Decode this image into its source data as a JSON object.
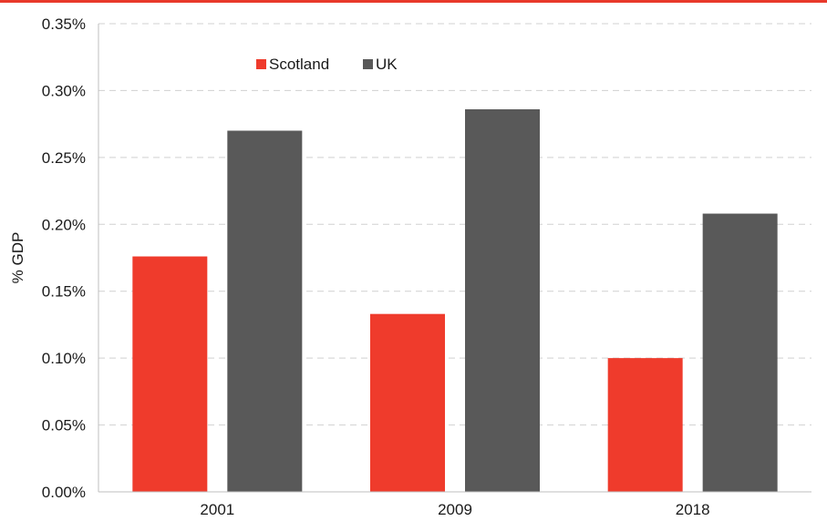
{
  "theme": {
    "accent": "#e8392b"
  },
  "chart_data": {
    "type": "bar",
    "title": "",
    "xlabel": "",
    "ylabel": "% GDP",
    "categories": [
      "2001",
      "2009",
      "2018"
    ],
    "series": [
      {
        "name": "Scotland",
        "color": "#ef3b2c",
        "values": [
          0.00176,
          0.00133,
          0.001
        ]
      },
      {
        "name": "UK",
        "color": "#595959",
        "values": [
          0.0027,
          0.00286,
          0.00208
        ]
      }
    ],
    "ylim": [
      0,
      0.0035
    ],
    "yticks": [
      "0.00%",
      "0.05%",
      "0.10%",
      "0.15%",
      "0.20%",
      "0.25%",
      "0.30%",
      "0.35%"
    ],
    "grid": true,
    "legend_position": "top-left"
  }
}
